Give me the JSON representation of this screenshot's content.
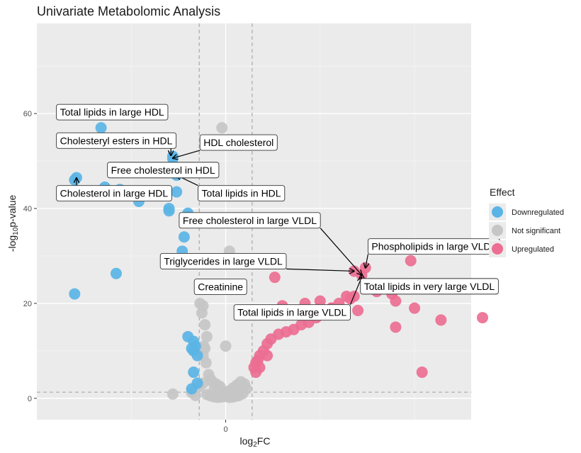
{
  "chart_data": {
    "type": "scatter",
    "title": "Univariate Metabolomic Analysis",
    "xlabel": "log2FC",
    "ylabel": "-log10p-value",
    "xlim": [
      -0.5,
      0.65
    ],
    "ylim": [
      -4.5,
      79
    ],
    "x_ticks": [
      {
        "v": 0,
        "label": "0"
      }
    ],
    "y_ticks": [
      {
        "v": 0,
        "label": "0"
      },
      {
        "v": 20,
        "label": "20"
      },
      {
        "v": 40,
        "label": "40"
      },
      {
        "v": 60,
        "label": "60"
      }
    ],
    "fc_threshold": 0.07,
    "p_threshold": 1.3,
    "legend": {
      "title": "Effect",
      "position": "right",
      "entries": [
        {
          "label": "Downregulated",
          "color": "#5AB4E5"
        },
        {
          "label": "Not significant",
          "color": "#C6C6C6"
        },
        {
          "label": "Upregulated",
          "color": "#EC6E92"
        }
      ]
    },
    "series": [
      {
        "name": "Not significant",
        "color": "#C6C6C6",
        "points": [
          [
            -0.01,
            57
          ],
          [
            0.017,
            38
          ],
          [
            0.01,
            31
          ],
          [
            0.012,
            29
          ],
          [
            -0.068,
            20
          ],
          [
            -0.06,
            19.5
          ],
          [
            -0.063,
            18
          ],
          [
            -0.055,
            15.5
          ],
          [
            -0.05,
            13
          ],
          [
            -0.058,
            11
          ],
          [
            -0.055,
            10.5
          ],
          [
            -0.06,
            9
          ],
          [
            -0.052,
            7.5
          ],
          [
            0.0,
            11
          ],
          [
            -0.045,
            5
          ],
          [
            -0.04,
            4
          ],
          [
            -0.035,
            3.5
          ],
          [
            -0.025,
            3
          ],
          [
            -0.015,
            2.5
          ],
          [
            -0.03,
            2
          ],
          [
            -0.02,
            1.8
          ],
          [
            -0.01,
            1.5
          ],
          [
            0.0,
            1.2
          ],
          [
            0.01,
            1.6
          ],
          [
            0.02,
            2.2
          ],
          [
            0.03,
            2.8
          ],
          [
            0.04,
            3.5
          ],
          [
            0.05,
            3
          ],
          [
            0.055,
            2
          ],
          [
            0.045,
            1
          ],
          [
            0.035,
            0.6
          ],
          [
            -0.05,
            0.8
          ],
          [
            -0.04,
            0.5
          ],
          [
            -0.03,
            0.3
          ],
          [
            -0.02,
            0.2
          ],
          [
            -0.01,
            0.3
          ],
          [
            0.0,
            0.4
          ],
          [
            0.01,
            0.2
          ],
          [
            0.02,
            0.3
          ],
          [
            0.03,
            0.5
          ],
          [
            0.025,
            1
          ],
          [
            0.015,
            0.7
          ],
          [
            0.005,
            0.9
          ],
          [
            -0.005,
            0.6
          ],
          [
            -0.015,
            1
          ],
          [
            -0.025,
            0.8
          ],
          [
            -0.14,
            0.9
          ],
          [
            -0.09,
            1.2
          ],
          [
            -0.08,
            0.6
          ],
          [
            -0.07,
            2.5
          ],
          [
            -0.06,
            3.2
          ]
        ]
      },
      {
        "name": "Downregulated",
        "color": "#5AB4E5",
        "points": [
          [
            -0.33,
            57
          ],
          [
            -0.14,
            51
          ],
          [
            -0.14,
            50.5
          ],
          [
            -0.13,
            47
          ],
          [
            -0.395,
            46.5
          ],
          [
            -0.4,
            46
          ],
          [
            -0.32,
            44.5
          ],
          [
            -0.28,
            44
          ],
          [
            -0.3,
            43.5
          ],
          [
            -0.13,
            43.5
          ],
          [
            -0.23,
            41.5
          ],
          [
            -0.15,
            40
          ],
          [
            -0.15,
            39.5
          ],
          [
            -0.1,
            39
          ],
          [
            -0.1,
            38.5
          ],
          [
            -0.11,
            34
          ],
          [
            -0.115,
            31
          ],
          [
            -0.29,
            26.3
          ],
          [
            -0.4,
            22
          ],
          [
            -0.1,
            13
          ],
          [
            -0.085,
            12
          ],
          [
            -0.08,
            11
          ],
          [
            -0.09,
            10.5
          ],
          [
            -0.085,
            10
          ],
          [
            -0.075,
            9
          ],
          [
            -0.085,
            5.5
          ],
          [
            -0.075,
            3.2
          ],
          [
            -0.09,
            2
          ]
        ]
      },
      {
        "name": "Upregulated",
        "color": "#EC6E92",
        "points": [
          [
            0.37,
            27.5
          ],
          [
            0.34,
            26.8
          ],
          [
            0.36,
            26
          ],
          [
            0.49,
            29
          ],
          [
            0.5,
            24
          ],
          [
            0.44,
            22
          ],
          [
            0.4,
            22.5
          ],
          [
            0.34,
            21.5
          ],
          [
            0.32,
            21.5
          ],
          [
            0.3,
            20
          ],
          [
            0.28,
            19
          ],
          [
            0.26,
            18
          ],
          [
            0.24,
            17
          ],
          [
            0.22,
            16
          ],
          [
            0.2,
            15.5
          ],
          [
            0.18,
            14.5
          ],
          [
            0.16,
            14
          ],
          [
            0.14,
            13.5
          ],
          [
            0.12,
            12.5
          ],
          [
            0.11,
            11.5
          ],
          [
            0.1,
            10
          ],
          [
            0.09,
            9
          ],
          [
            0.085,
            8
          ],
          [
            0.08,
            7.5
          ],
          [
            0.09,
            6.5
          ],
          [
            0.075,
            6.5
          ],
          [
            0.08,
            5.5
          ],
          [
            0.11,
            9
          ],
          [
            0.15,
            19.5
          ],
          [
            0.19,
            18
          ],
          [
            0.21,
            20
          ],
          [
            0.25,
            20.5
          ],
          [
            0.28,
            19
          ],
          [
            0.33,
            21
          ],
          [
            0.35,
            18.5
          ],
          [
            0.45,
            15
          ],
          [
            0.5,
            19
          ],
          [
            0.45,
            20.5
          ],
          [
            0.57,
            16.5
          ],
          [
            0.68,
            17
          ],
          [
            0.52,
            5.5
          ],
          [
            0.13,
            25.5
          ]
        ]
      }
    ],
    "annotations": [
      {
        "text": "Total lipids in large HDL",
        "box": [
          -0.45,
          60.3
        ],
        "anchor": "start"
      },
      {
        "text": "Cholesteryl esters in HDL",
        "box": [
          -0.45,
          54.3
        ],
        "anchor": "start",
        "arrow_to": [
          -0.145,
          51.2
        ]
      },
      {
        "text": "HDL cholesterol",
        "box": [
          -0.07,
          53.9
        ],
        "anchor": "start",
        "arrow_to": [
          -0.14,
          50.6
        ]
      },
      {
        "text": "Free cholesterol in HDL",
        "box": [
          -0.315,
          48.1
        ],
        "anchor": "start"
      },
      {
        "text": "Cholesterol in large HDL",
        "box": [
          -0.45,
          43.2
        ],
        "anchor": "start",
        "arrow_to": [
          -0.395,
          46.4
        ]
      },
      {
        "text": "Total lipids in HDL",
        "box": [
          -0.075,
          43.2
        ],
        "anchor": "start",
        "arrow_to": [
          -0.13,
          47
        ]
      },
      {
        "text": "Free cholesterol in large VLDL",
        "box": [
          -0.125,
          37.5
        ],
        "anchor": "start",
        "arrow_to": [
          0.36,
          26
        ]
      },
      {
        "text": "Phospholipids in large VLDL",
        "box": [
          0.375,
          32.0
        ],
        "anchor": "start",
        "arrow_to": [
          0.37,
          27.5
        ]
      },
      {
        "text": "Triglycerides in large VLDL",
        "box": [
          -0.175,
          28.9
        ],
        "anchor": "start",
        "arrow_to": [
          0.34,
          26.8
        ]
      },
      {
        "text": "Creatinine",
        "box": [
          -0.085,
          23.5
        ],
        "anchor": "start"
      },
      {
        "text": "Total lipids in very large VLDL",
        "box": [
          0.355,
          23.6
        ],
        "anchor": "start",
        "arrow_to": [
          0.36,
          26.2
        ]
      },
      {
        "text": "Total lipids in large VLDL",
        "box": [
          0.02,
          18.1
        ],
        "anchor": "start",
        "arrow_to": [
          0.36,
          25.5
        ]
      }
    ]
  }
}
